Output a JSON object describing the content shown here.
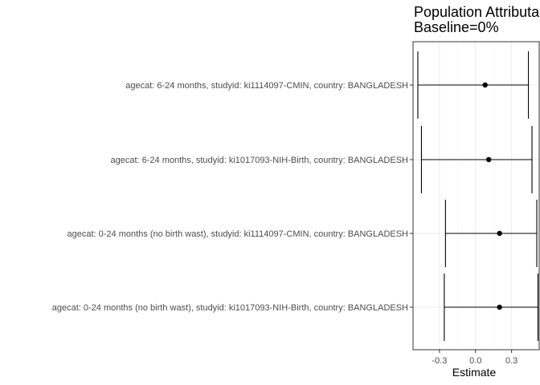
{
  "chart_data": {
    "type": "forest",
    "title_lines": [
      "Population Attributable Fraction",
      "Baseline=0%"
    ],
    "xlabel": "Estimate",
    "ylabel": "",
    "xlim": [
      -0.52,
      0.53
    ],
    "xticks": [
      -0.3,
      0.0,
      0.3
    ],
    "xtick_labels": [
      "-0.3",
      "0.0",
      "0.3"
    ],
    "grid": true,
    "colors": {
      "mark": "#000000",
      "grid_major": "#ebebeb",
      "grid_minor": "#f5f5f5",
      "panel_border": "#333333",
      "text": "#4d4d4d"
    },
    "rows": [
      {
        "label": "agecat: 6-24 months, studyid: ki1114097-CMIN, country: BANGLADESH",
        "estimate": 0.08,
        "lower": -0.48,
        "upper": 0.44
      },
      {
        "label": "agecat: 6-24 months, studyid: ki1017093-NIH-Birth, country: BANGLADESH",
        "estimate": 0.11,
        "lower": -0.45,
        "upper": 0.47
      },
      {
        "label": "agecat: 0-24 months (no birth wast), studyid: ki1114097-CMIN, country: BANGLADESH",
        "estimate": 0.2,
        "lower": -0.25,
        "upper": 0.51
      },
      {
        "label": "agecat: 0-24 months (no birth wast), studyid: ki1017093-NIH-Birth, country: BANGLADESH",
        "estimate": 0.2,
        "lower": -0.26,
        "upper": 0.52
      }
    ]
  }
}
